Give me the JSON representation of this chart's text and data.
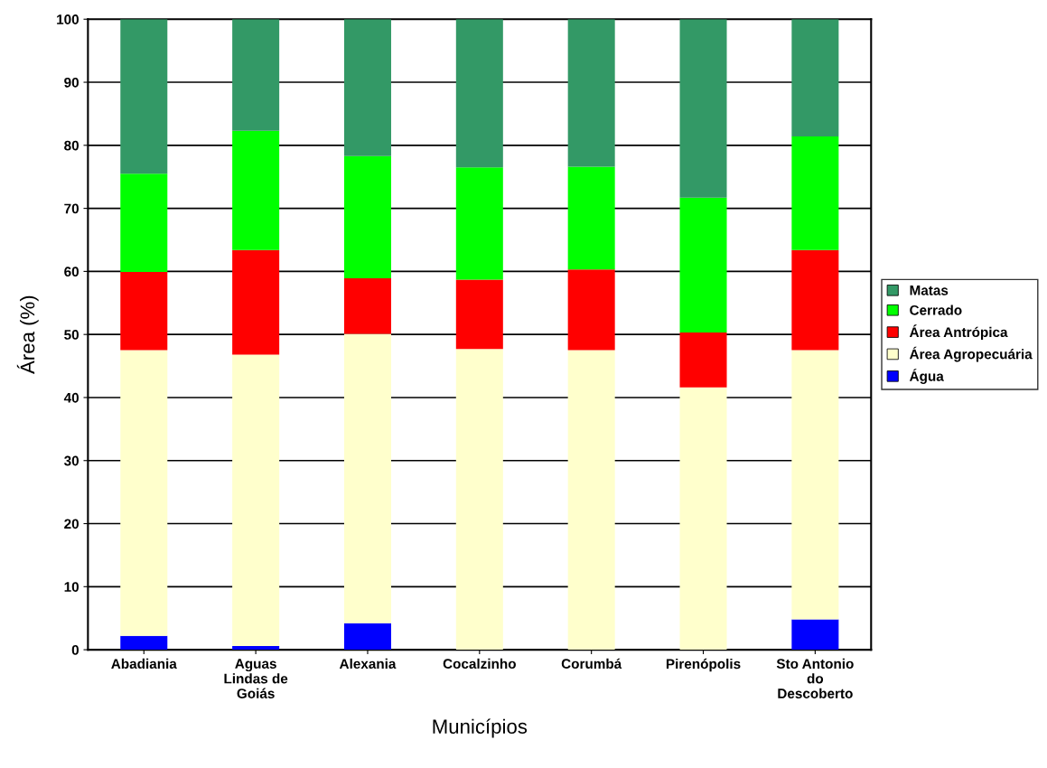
{
  "chart_data": {
    "type": "bar",
    "stacked": true,
    "xlabel": "Municípios",
    "ylabel": "Área (%)",
    "categories": [
      "Abadiania",
      "Aguas Lindas de Goiás",
      "Alexania",
      "Cocalzinho",
      "Corumbá",
      "Pirenópolis",
      "Sto Antonio do Descoberto"
    ],
    "series": [
      {
        "name": "Água",
        "color": "#0000ff",
        "values": [
          2.2,
          0.6,
          4.2,
          0,
          0,
          0,
          4.8
        ]
      },
      {
        "name": "Área Agropecuária",
        "color": "#ffffcc",
        "values": [
          45.3,
          46.2,
          45.9,
          47.7,
          47.5,
          41.6,
          42.7
        ]
      },
      {
        "name": "Área Antrópica",
        "color": "#ff0000",
        "values": [
          12.4,
          16.6,
          8.8,
          11.0,
          12.8,
          8.7,
          15.9
        ]
      },
      {
        "name": "Cerrado",
        "color": "#00ff00",
        "values": [
          15.6,
          18.9,
          19.4,
          17.8,
          16.3,
          21.4,
          18.0
        ]
      },
      {
        "name": "Matas",
        "color": "#339966",
        "values": [
          24.5,
          17.7,
          21.7,
          23.5,
          23.4,
          28.3,
          18.6
        ]
      }
    ],
    "ylim": [
      0,
      100
    ],
    "yticks": [
      0,
      10,
      20,
      30,
      40,
      50,
      60,
      70,
      80,
      90,
      100
    ],
    "grid": "y",
    "legend": "right"
  }
}
